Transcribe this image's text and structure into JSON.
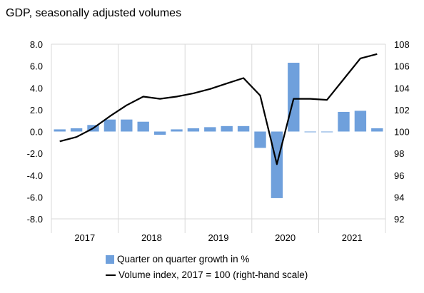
{
  "title": "GDP, seasonally adjusted volumes",
  "chart_data": {
    "type": "bar+line",
    "categories": [
      "2017Q1",
      "2017Q2",
      "2017Q3",
      "2017Q4",
      "2018Q1",
      "2018Q2",
      "2018Q3",
      "2018Q4",
      "2019Q1",
      "2019Q2",
      "2019Q3",
      "2019Q4",
      "2020Q1",
      "2020Q2",
      "2020Q3",
      "2020Q4",
      "2021Q1",
      "2021Q2",
      "2021Q3",
      "2021Q4"
    ],
    "year_labels": [
      "2017",
      "2018",
      "2019",
      "2020",
      "2021"
    ],
    "series": [
      {
        "name": "Quarter on quarter growth in %",
        "kind": "bar",
        "axis": "left",
        "color": "#6fa0dc",
        "values": [
          0.2,
          0.3,
          0.6,
          1.1,
          1.1,
          0.9,
          -0.3,
          0.2,
          0.3,
          0.4,
          0.5,
          0.5,
          -1.5,
          -6.1,
          6.3,
          -0.05,
          -0.05,
          1.8,
          1.9,
          0.3
        ]
      },
      {
        "name": "Volume index, 2017 = 100 (right-hand scale)",
        "kind": "line",
        "axis": "right",
        "color": "#000000",
        "values": [
          99.1,
          99.5,
          100.3,
          101.4,
          102.4,
          103.2,
          103.0,
          103.2,
          103.5,
          103.9,
          104.4,
          104.9,
          103.3,
          97.0,
          103.0,
          103.0,
          102.9,
          104.8,
          106.7,
          107.1
        ]
      }
    ],
    "y_left": {
      "min": -8.0,
      "max": 8.0,
      "step": 2.0,
      "ticks": [
        "8.0",
        "6.0",
        "4.0",
        "2.0",
        "0.0",
        "-2.0",
        "-4.0",
        "-6.0",
        "-8.0"
      ]
    },
    "y_right": {
      "min": 92,
      "max": 108,
      "step": 2,
      "ticks": [
        "108",
        "106",
        "104",
        "102",
        "100",
        "98",
        "96",
        "94",
        "92"
      ]
    },
    "grid": "vertical",
    "legend_position": "bottom"
  }
}
